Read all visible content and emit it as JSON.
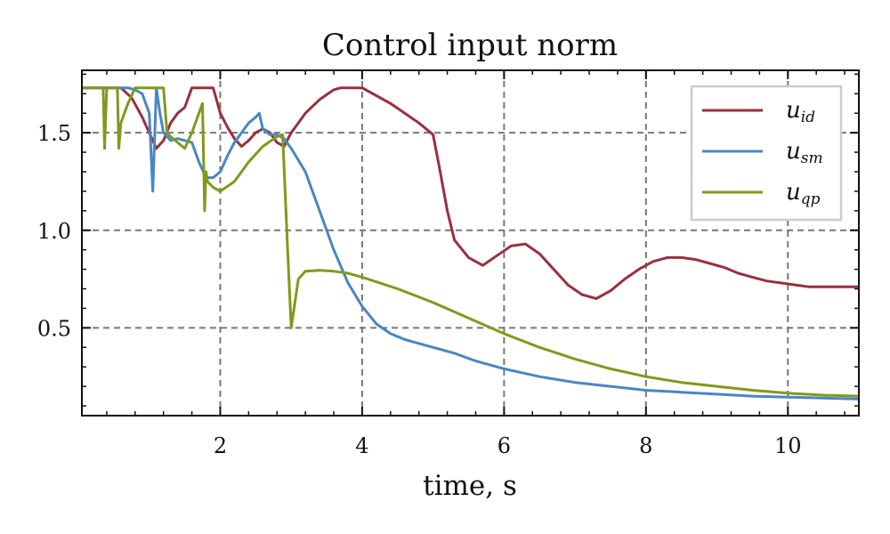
{
  "chart_data": {
    "type": "line",
    "title": "Control input norm",
    "xlabel": "time, s",
    "ylabel": "",
    "xlim": [
      0.05,
      11.0
    ],
    "ylim": [
      0.05,
      1.82
    ],
    "xticks": [
      2,
      4,
      6,
      8,
      10
    ],
    "yticks": [
      0.5,
      1.0,
      1.5
    ],
    "xtick_labels": [
      "2",
      "4",
      "6",
      "8",
      "10"
    ],
    "ytick_labels": [
      "0.5",
      "1.0",
      "1.5"
    ],
    "grid": true,
    "legend_position": "top-right",
    "series": [
      {
        "name": "u_id",
        "legend_base": "u",
        "legend_sub": "id",
        "color": "#9b2f3e",
        "x": [
          0.05,
          0.6,
          0.75,
          0.9,
          1.0,
          1.1,
          1.2,
          1.3,
          1.4,
          1.5,
          1.6,
          1.7,
          1.8,
          1.9,
          2.0,
          2.1,
          2.2,
          2.3,
          2.4,
          2.5,
          2.6,
          2.7,
          2.8,
          2.9,
          3.0,
          3.2,
          3.4,
          3.6,
          3.7,
          4.0,
          4.2,
          4.4,
          4.6,
          4.8,
          5.0,
          5.1,
          5.2,
          5.3,
          5.5,
          5.7,
          5.9,
          6.1,
          6.3,
          6.5,
          6.7,
          6.9,
          7.1,
          7.3,
          7.5,
          7.7,
          7.9,
          8.1,
          8.3,
          8.5,
          8.7,
          8.9,
          9.1,
          9.3,
          9.5,
          9.7,
          9.9,
          10.1,
          10.3,
          10.5,
          10.7,
          11.0
        ],
        "y": [
          1.73,
          1.73,
          1.68,
          1.58,
          1.5,
          1.42,
          1.46,
          1.55,
          1.6,
          1.63,
          1.73,
          1.73,
          1.73,
          1.73,
          1.6,
          1.53,
          1.47,
          1.43,
          1.46,
          1.5,
          1.52,
          1.5,
          1.45,
          1.43,
          1.5,
          1.6,
          1.67,
          1.72,
          1.73,
          1.73,
          1.69,
          1.65,
          1.6,
          1.55,
          1.49,
          1.3,
          1.1,
          0.95,
          0.86,
          0.82,
          0.87,
          0.92,
          0.93,
          0.88,
          0.8,
          0.72,
          0.67,
          0.65,
          0.69,
          0.75,
          0.8,
          0.84,
          0.86,
          0.86,
          0.85,
          0.83,
          0.81,
          0.78,
          0.76,
          0.74,
          0.73,
          0.72,
          0.71,
          0.71,
          0.71,
          0.71
        ]
      },
      {
        "name": "u_sm",
        "legend_base": "u",
        "legend_sub": "sm",
        "color": "#4a86c4",
        "x": [
          0.05,
          0.7,
          0.8,
          0.9,
          1.0,
          1.05,
          1.1,
          1.15,
          1.2,
          1.3,
          1.4,
          1.5,
          1.6,
          1.7,
          1.8,
          1.9,
          2.0,
          2.1,
          2.2,
          2.3,
          2.4,
          2.5,
          2.55,
          2.6,
          2.7,
          2.8,
          2.9,
          3.0,
          3.2,
          3.4,
          3.6,
          3.8,
          4.0,
          4.2,
          4.4,
          4.6,
          4.8,
          5.0,
          5.3,
          5.6,
          6.0,
          6.5,
          7.0,
          7.5,
          8.0,
          8.5,
          9.0,
          9.5,
          10.0,
          10.5,
          11.0
        ],
        "y": [
          1.73,
          1.73,
          1.72,
          1.7,
          1.6,
          1.2,
          1.73,
          1.6,
          1.5,
          1.46,
          1.47,
          1.46,
          1.45,
          1.35,
          1.27,
          1.27,
          1.3,
          1.38,
          1.45,
          1.5,
          1.55,
          1.58,
          1.6,
          1.52,
          1.49,
          1.49,
          1.47,
          1.42,
          1.3,
          1.1,
          0.9,
          0.73,
          0.61,
          0.52,
          0.47,
          0.44,
          0.42,
          0.4,
          0.37,
          0.33,
          0.29,
          0.25,
          0.22,
          0.2,
          0.18,
          0.17,
          0.16,
          0.15,
          0.145,
          0.14,
          0.135
        ]
      },
      {
        "name": "u_qp",
        "legend_base": "u",
        "legend_sub": "qp",
        "color": "#7f9a1c",
        "x": [
          0.05,
          0.35,
          0.37,
          0.4,
          0.55,
          0.57,
          0.6,
          0.7,
          0.8,
          1.0,
          1.2,
          1.25,
          1.3,
          1.4,
          1.5,
          1.6,
          1.7,
          1.75,
          1.78,
          1.8,
          1.82,
          1.9,
          2.0,
          2.2,
          2.4,
          2.6,
          2.8,
          2.88,
          2.95,
          3.0,
          3.1,
          3.2,
          3.4,
          3.6,
          3.8,
          4.0,
          4.5,
          5.0,
          5.5,
          6.0,
          6.5,
          7.0,
          7.5,
          8.0,
          8.5,
          9.0,
          9.5,
          10.0,
          10.5,
          11.0
        ],
        "y": [
          1.73,
          1.73,
          1.42,
          1.73,
          1.73,
          1.42,
          1.55,
          1.65,
          1.73,
          1.73,
          1.73,
          1.5,
          1.48,
          1.45,
          1.42,
          1.5,
          1.6,
          1.65,
          1.1,
          1.3,
          1.25,
          1.22,
          1.2,
          1.25,
          1.35,
          1.43,
          1.48,
          1.49,
          0.9,
          0.5,
          0.75,
          0.79,
          0.795,
          0.79,
          0.78,
          0.76,
          0.7,
          0.63,
          0.55,
          0.47,
          0.4,
          0.34,
          0.29,
          0.25,
          0.22,
          0.2,
          0.18,
          0.165,
          0.155,
          0.15
        ]
      }
    ]
  }
}
